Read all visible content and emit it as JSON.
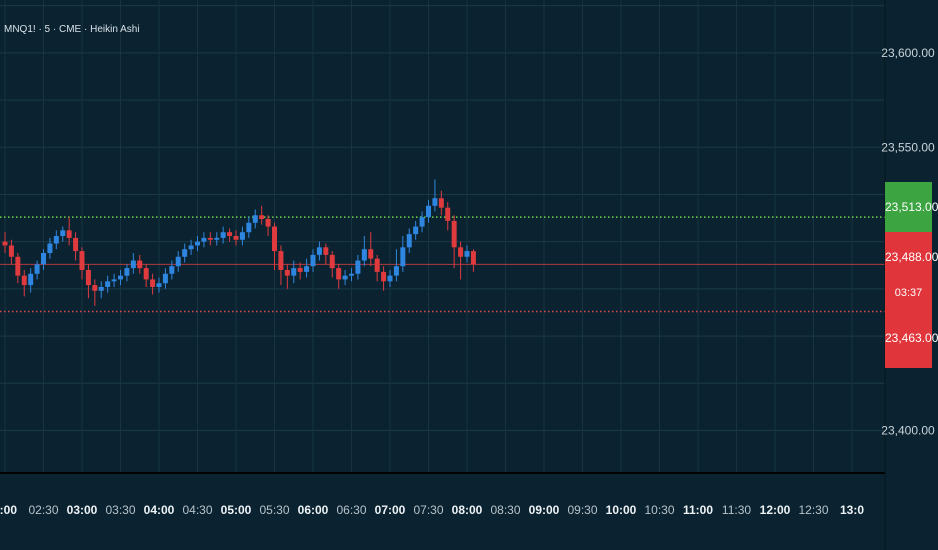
{
  "header": {
    "symbol": "MNQ1! · 5 · CME · Heikin Ashi"
  },
  "colors": {
    "background": "#0b2330",
    "up": "#2f86e0",
    "down": "#df3b3f",
    "green_line": "#6fd84a",
    "red_line": "#e04850"
  },
  "price_tags": {
    "last_green": "23,513.00",
    "last_price": "23,488.00",
    "countdown": "03:37",
    "red_level": "23,463.00"
  },
  "chart_data": {
    "type": "candlestick",
    "title": "MNQ1! · 5 · CME · Heikin Ashi",
    "y_ticks": [
      "23,600.00",
      "23,550.00",
      "23,400.00"
    ],
    "x_ticks": [
      "2:00",
      "02:30",
      "03:00",
      "03:30",
      "04:00",
      "04:30",
      "05:00",
      "05:30",
      "06:00",
      "06:30",
      "07:00",
      "07:30",
      "08:00",
      "08:30",
      "09:00",
      "09:30",
      "10:00",
      "10:30",
      "11:00",
      "11:30",
      "12:00",
      "12:30",
      "13:0"
    ],
    "bold_x_ticks": [
      "2:00",
      "03:00",
      "04:00",
      "05:00",
      "06:00",
      "07:00",
      "08:00",
      "09:00",
      "10:00",
      "11:00",
      "12:00",
      "13:0"
    ],
    "ylim": [
      23378,
      23628
    ],
    "levels": [
      {
        "name": "green-level",
        "value": 23513,
        "style": "dotted",
        "color": "#6fd84a"
      },
      {
        "name": "red-level",
        "value": 23463,
        "style": "dotted",
        "color": "#e04850"
      },
      {
        "name": "last-price-line",
        "value": 23488,
        "style": "solid",
        "color": "#b03a3e"
      }
    ],
    "candles": [
      [
        0,
        23500,
        23498,
        23505,
        23494
      ],
      [
        1,
        23498,
        23492,
        23501,
        23488
      ],
      [
        2,
        23492,
        23482,
        23494,
        23478
      ],
      [
        3,
        23482,
        23477,
        23485,
        23471
      ],
      [
        4,
        23477,
        23483,
        23486,
        23473
      ],
      [
        5,
        23483,
        23488,
        23490,
        23480
      ],
      [
        6,
        23488,
        23494,
        23496,
        23485
      ],
      [
        7,
        23494,
        23499,
        23502,
        23491
      ],
      [
        8,
        23499,
        23503,
        23506,
        23496
      ],
      [
        9,
        23503,
        23506,
        23508,
        23500
      ],
      [
        10,
        23506,
        23502,
        23513,
        23498
      ],
      [
        11,
        23502,
        23495,
        23505,
        23490
      ],
      [
        12,
        23495,
        23485,
        23497,
        23480
      ],
      [
        13,
        23485,
        23477,
        23488,
        23470
      ],
      [
        14,
        23477,
        23474,
        23480,
        23466
      ],
      [
        15,
        23474,
        23476,
        23479,
        23470
      ],
      [
        16,
        23476,
        23479,
        23482,
        23473
      ],
      [
        17,
        23479,
        23480,
        23483,
        23476
      ],
      [
        18,
        23480,
        23482,
        23485,
        23477
      ],
      [
        19,
        23482,
        23486,
        23488,
        23479
      ],
      [
        20,
        23486,
        23490,
        23494,
        23483
      ],
      [
        21,
        23490,
        23486,
        23493,
        23483
      ],
      [
        22,
        23486,
        23480,
        23488,
        23476
      ],
      [
        23,
        23480,
        23476,
        23483,
        23472
      ],
      [
        24,
        23476,
        23478,
        23481,
        23473
      ],
      [
        25,
        23478,
        23483,
        23486,
        23475
      ],
      [
        26,
        23483,
        23487,
        23490,
        23480
      ],
      [
        27,
        23487,
        23492,
        23495,
        23484
      ],
      [
        28,
        23492,
        23496,
        23499,
        23489
      ],
      [
        29,
        23496,
        23498,
        23501,
        23493
      ],
      [
        30,
        23498,
        23500,
        23503,
        23495
      ],
      [
        31,
        23500,
        23502,
        23505,
        23497
      ],
      [
        32,
        23502,
        23501,
        23505,
        23498
      ],
      [
        33,
        23501,
        23502,
        23505,
        23498
      ],
      [
        34,
        23502,
        23505,
        23508,
        23499
      ],
      [
        35,
        23505,
        23503,
        23507,
        23500
      ],
      [
        36,
        23503,
        23501,
        23506,
        23498
      ],
      [
        37,
        23501,
        23505,
        23508,
        23498
      ],
      [
        38,
        23505,
        23510,
        23513,
        23502
      ],
      [
        39,
        23510,
        23514,
        23517,
        23507
      ],
      [
        40,
        23514,
        23512,
        23519,
        23509
      ],
      [
        41,
        23512,
        23508,
        23514,
        23503
      ],
      [
        42,
        23508,
        23495,
        23510,
        23485
      ],
      [
        43,
        23495,
        23485,
        23498,
        23477
      ],
      [
        44,
        23485,
        23482,
        23488,
        23475
      ],
      [
        45,
        23482,
        23486,
        23490,
        23478
      ],
      [
        46,
        23486,
        23484,
        23489,
        23480
      ],
      [
        47,
        23484,
        23487,
        23491,
        23481
      ],
      [
        48,
        23487,
        23493,
        23496,
        23484
      ],
      [
        49,
        23493,
        23497,
        23500,
        23490
      ],
      [
        50,
        23497,
        23493,
        23499,
        23488
      ],
      [
        51,
        23493,
        23486,
        23495,
        23481
      ],
      [
        52,
        23486,
        23480,
        23488,
        23475
      ],
      [
        53,
        23480,
        23482,
        23485,
        23477
      ],
      [
        54,
        23482,
        23483,
        23486,
        23479
      ],
      [
        55,
        23483,
        23490,
        23493,
        23480
      ],
      [
        56,
        23490,
        23496,
        23503,
        23487
      ],
      [
        57,
        23496,
        23491,
        23505,
        23487
      ],
      [
        58,
        23491,
        23484,
        23493,
        23479
      ],
      [
        59,
        23484,
        23479,
        23487,
        23474
      ],
      [
        60,
        23479,
        23482,
        23485,
        23476
      ],
      [
        61,
        23482,
        23487,
        23496,
        23479
      ],
      [
        62,
        23487,
        23497,
        23503,
        23484
      ],
      [
        63,
        23497,
        23504,
        23507,
        23494
      ],
      [
        64,
        23504,
        23508,
        23511,
        23501
      ],
      [
        65,
        23508,
        23513,
        23516,
        23505
      ],
      [
        66,
        23513,
        23519,
        23522,
        23510
      ],
      [
        67,
        23519,
        23523,
        23533,
        23516
      ],
      [
        68,
        23523,
        23518,
        23527,
        23514
      ],
      [
        69,
        23518,
        23511,
        23521,
        23506
      ],
      [
        70,
        23511,
        23497,
        23514,
        23486
      ],
      [
        71,
        23497,
        23492,
        23500,
        23480
      ],
      [
        72,
        23492,
        23495,
        23498,
        23489
      ],
      [
        73,
        23495,
        23488,
        23496,
        23484
      ]
    ],
    "candle_fields": [
      "index",
      "open",
      "close",
      "high",
      "low"
    ]
  }
}
